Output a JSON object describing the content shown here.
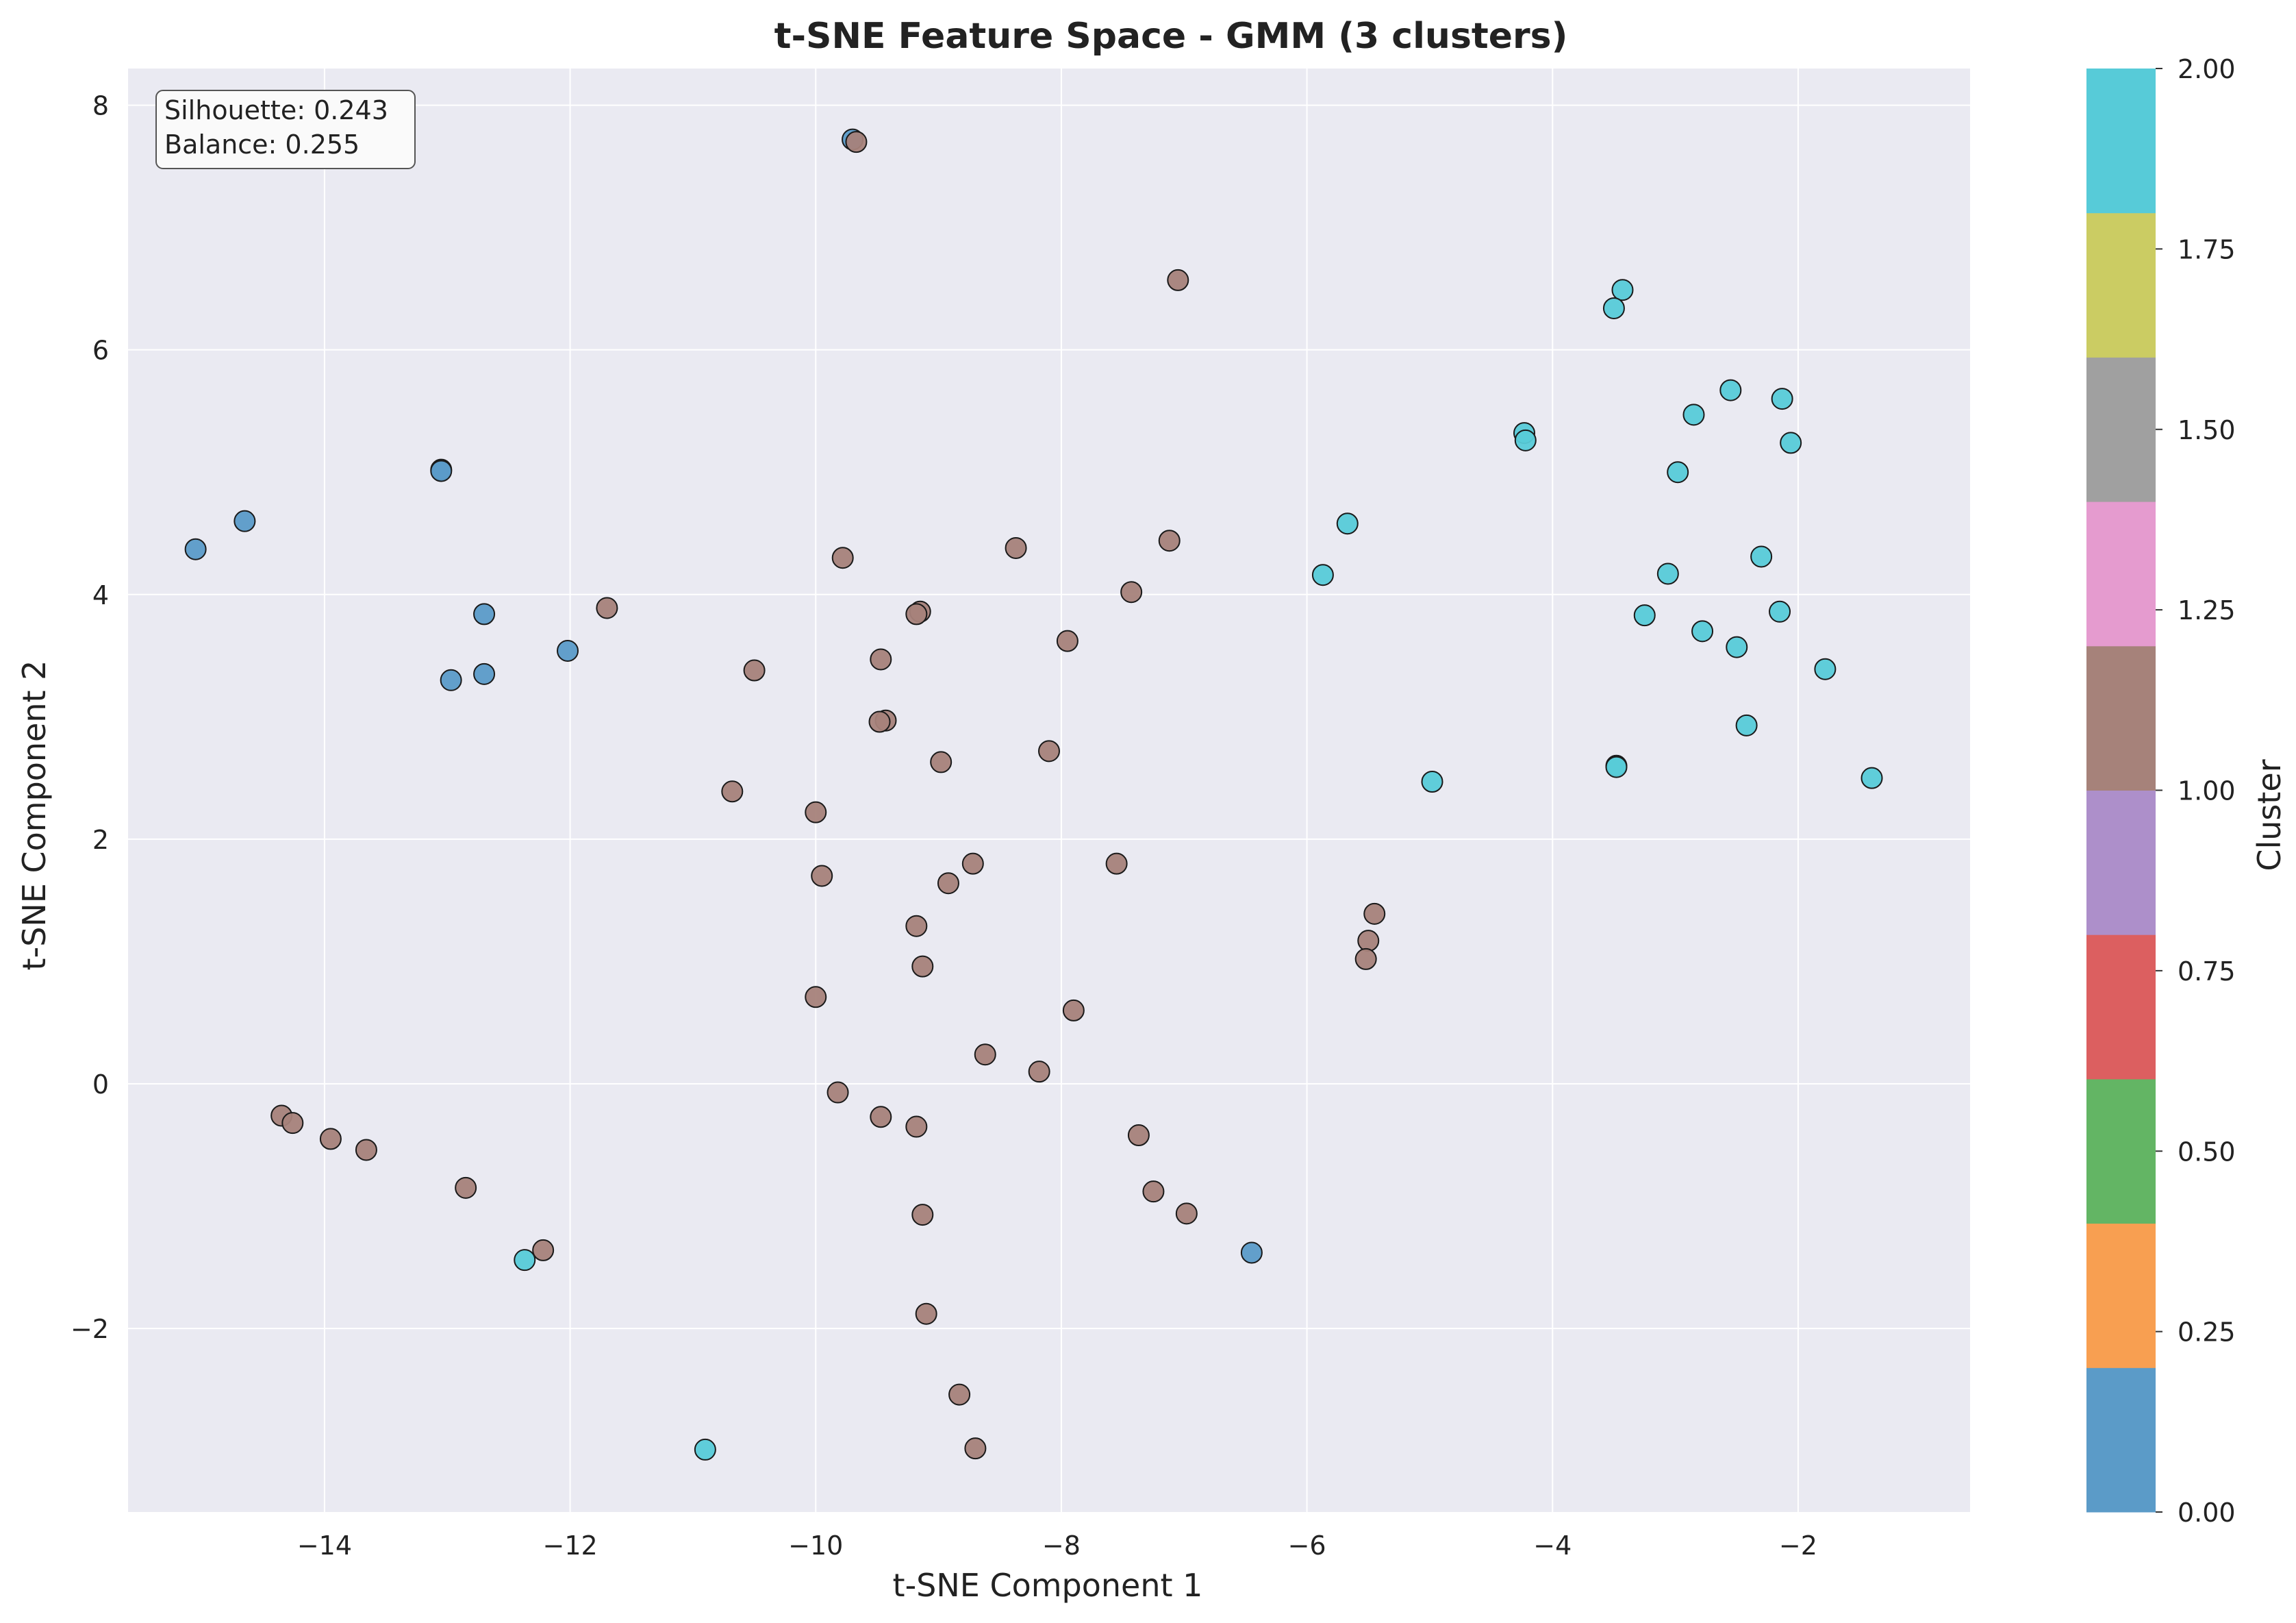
{
  "chart_data": {
    "type": "scatter",
    "title": "t-SNE Feature Space - GMM (3 clusters)",
    "xlabel": "t-SNE Component 1",
    "ylabel": "t-SNE Component 2",
    "xlim": [
      -15.6,
      -0.6
    ],
    "ylim": [
      -3.5,
      8.3
    ],
    "xticks": [
      -14,
      -12,
      -10,
      -8,
      -6,
      -4,
      -2
    ],
    "yticks": [
      -2,
      0,
      2,
      4,
      6,
      8
    ],
    "grid": true,
    "annotation": [
      "Silhouette: 0.243",
      "Balance: 0.255"
    ],
    "colorbar": {
      "label": "Cluster",
      "range": [
        0,
        2
      ],
      "ticks": [
        0.0,
        0.25,
        0.5,
        0.75,
        1.0,
        1.25,
        1.5,
        1.75,
        2.0
      ],
      "tick_labels": [
        "0.00",
        "0.25",
        "0.50",
        "0.75",
        "1.00",
        "1.25",
        "1.50",
        "1.75",
        "2.00"
      ],
      "bands": [
        "#5b9bc8",
        "#f89f51",
        "#63b564",
        "#dc5f60",
        "#ad8fca",
        "#a6827a",
        "#e59bcf",
        "#a0a0a0",
        "#cbcc63",
        "#57cbd8"
      ]
    },
    "cluster_colors": [
      "#5b9bc8",
      "#a6827a",
      "#57cbd8"
    ],
    "points": [
      {
        "x": -9.7,
        "y": 7.72,
        "c": 0
      },
      {
        "x": -9.67,
        "y": 7.7,
        "c": 1
      },
      {
        "x": -7.05,
        "y": 6.57,
        "c": 1
      },
      {
        "x": -13.05,
        "y": 5.02,
        "c": 0
      },
      {
        "x": -13.05,
        "y": 5.01,
        "c": 0
      },
      {
        "x": -14.65,
        "y": 4.6,
        "c": 0
      },
      {
        "x": -15.05,
        "y": 4.37,
        "c": 0
      },
      {
        "x": -12.7,
        "y": 3.84,
        "c": 0
      },
      {
        "x": -12.02,
        "y": 3.54,
        "c": 0
      },
      {
        "x": -12.7,
        "y": 3.35,
        "c": 0
      },
      {
        "x": -12.97,
        "y": 3.3,
        "c": 0
      },
      {
        "x": -6.45,
        "y": -1.38,
        "c": 0
      },
      {
        "x": -11.7,
        "y": 3.89,
        "c": 1
      },
      {
        "x": -9.78,
        "y": 4.3,
        "c": 1
      },
      {
        "x": -8.37,
        "y": 4.38,
        "c": 1
      },
      {
        "x": -7.12,
        "y": 4.44,
        "c": 1
      },
      {
        "x": -7.43,
        "y": 4.02,
        "c": 1
      },
      {
        "x": -9.15,
        "y": 3.86,
        "c": 1
      },
      {
        "x": -9.18,
        "y": 3.84,
        "c": 1
      },
      {
        "x": -7.95,
        "y": 3.62,
        "c": 1
      },
      {
        "x": -9.47,
        "y": 3.47,
        "c": 1
      },
      {
        "x": -10.5,
        "y": 3.38,
        "c": 1
      },
      {
        "x": -9.43,
        "y": 2.97,
        "c": 1
      },
      {
        "x": -9.48,
        "y": 2.96,
        "c": 1
      },
      {
        "x": -8.98,
        "y": 2.63,
        "c": 1
      },
      {
        "x": -8.1,
        "y": 2.72,
        "c": 1
      },
      {
        "x": -10.68,
        "y": 2.39,
        "c": 1
      },
      {
        "x": -10.0,
        "y": 2.22,
        "c": 1
      },
      {
        "x": -8.72,
        "y": 1.8,
        "c": 1
      },
      {
        "x": -7.55,
        "y": 1.8,
        "c": 1
      },
      {
        "x": -9.95,
        "y": 1.7,
        "c": 1
      },
      {
        "x": -8.92,
        "y": 1.64,
        "c": 1
      },
      {
        "x": -5.45,
        "y": 1.39,
        "c": 1
      },
      {
        "x": -9.18,
        "y": 1.29,
        "c": 1
      },
      {
        "x": -5.5,
        "y": 1.17,
        "c": 1
      },
      {
        "x": -5.52,
        "y": 1.02,
        "c": 1
      },
      {
        "x": -9.13,
        "y": 0.96,
        "c": 1
      },
      {
        "x": -10.0,
        "y": 0.71,
        "c": 1
      },
      {
        "x": -7.9,
        "y": 0.6,
        "c": 1
      },
      {
        "x": -8.62,
        "y": 0.24,
        "c": 1
      },
      {
        "x": -8.18,
        "y": 0.1,
        "c": 1
      },
      {
        "x": -9.82,
        "y": -0.07,
        "c": 1
      },
      {
        "x": -14.35,
        "y": -0.26,
        "c": 1
      },
      {
        "x": -14.26,
        "y": -0.32,
        "c": 1
      },
      {
        "x": -9.47,
        "y": -0.27,
        "c": 1
      },
      {
        "x": -9.18,
        "y": -0.35,
        "c": 1
      },
      {
        "x": -13.95,
        "y": -0.45,
        "c": 1
      },
      {
        "x": -7.37,
        "y": -0.42,
        "c": 1
      },
      {
        "x": -13.66,
        "y": -0.54,
        "c": 1
      },
      {
        "x": -12.85,
        "y": -0.85,
        "c": 1
      },
      {
        "x": -7.25,
        "y": -0.88,
        "c": 1
      },
      {
        "x": -9.13,
        "y": -1.07,
        "c": 1
      },
      {
        "x": -6.98,
        "y": -1.06,
        "c": 1
      },
      {
        "x": -12.22,
        "y": -1.36,
        "c": 1
      },
      {
        "x": -9.1,
        "y": -1.88,
        "c": 1
      },
      {
        "x": -8.83,
        "y": -2.54,
        "c": 1
      },
      {
        "x": -8.7,
        "y": -2.98,
        "c": 1
      },
      {
        "x": -3.43,
        "y": 6.49,
        "c": 2
      },
      {
        "x": -3.5,
        "y": 6.34,
        "c": 2
      },
      {
        "x": -2.55,
        "y": 5.67,
        "c": 2
      },
      {
        "x": -2.13,
        "y": 5.6,
        "c": 2
      },
      {
        "x": -2.85,
        "y": 5.47,
        "c": 2
      },
      {
        "x": -4.23,
        "y": 5.32,
        "c": 2
      },
      {
        "x": -4.22,
        "y": 5.26,
        "c": 2
      },
      {
        "x": -2.06,
        "y": 5.24,
        "c": 2
      },
      {
        "x": -2.98,
        "y": 5.0,
        "c": 2
      },
      {
        "x": -5.67,
        "y": 4.58,
        "c": 2
      },
      {
        "x": -2.3,
        "y": 4.31,
        "c": 2
      },
      {
        "x": -5.87,
        "y": 4.16,
        "c": 2
      },
      {
        "x": -3.06,
        "y": 4.17,
        "c": 2
      },
      {
        "x": -2.15,
        "y": 3.86,
        "c": 2
      },
      {
        "x": -3.25,
        "y": 3.83,
        "c": 2
      },
      {
        "x": -2.78,
        "y": 3.7,
        "c": 2
      },
      {
        "x": -2.5,
        "y": 3.57,
        "c": 2
      },
      {
        "x": -1.78,
        "y": 3.39,
        "c": 2
      },
      {
        "x": -2.42,
        "y": 2.93,
        "c": 2
      },
      {
        "x": -3.48,
        "y": 2.6,
        "c": 2
      },
      {
        "x": -3.48,
        "y": 2.59,
        "c": 2
      },
      {
        "x": -4.98,
        "y": 2.47,
        "c": 2
      },
      {
        "x": -1.4,
        "y": 2.5,
        "c": 2
      },
      {
        "x": -12.37,
        "y": -1.44,
        "c": 2
      },
      {
        "x": -10.9,
        "y": -2.99,
        "c": 2
      }
    ]
  }
}
